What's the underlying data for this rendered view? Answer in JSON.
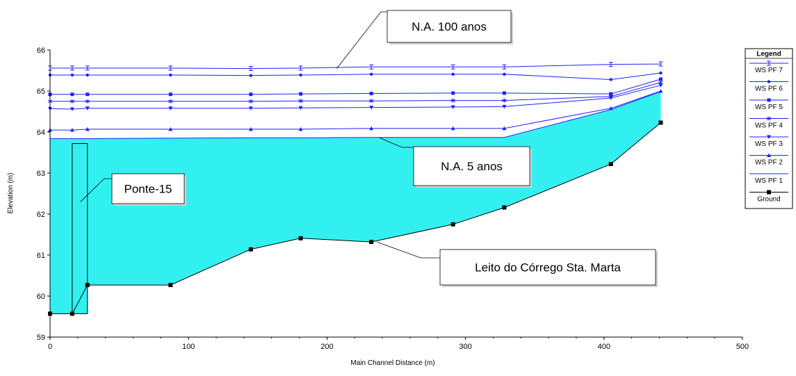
{
  "chart_data": {
    "type": "line",
    "title": "",
    "xlabel": "Main Channel Distance (m)",
    "ylabel": "Elevation (m)",
    "xlim": [
      0,
      500
    ],
    "ylim": [
      59,
      66
    ],
    "xticks": [
      "0",
      "100",
      "200",
      "300",
      "400",
      "500"
    ],
    "yticks": [
      "59",
      "60",
      "61",
      "62",
      "63",
      "64",
      "65",
      "66"
    ],
    "grid": false,
    "legend_position": "right",
    "legend_title": "Legend",
    "water_fill_color": "#33f0f0",
    "line_color": "#2020ff",
    "ground_color": "#000000",
    "series": [
      {
        "name": "WS  PF 7",
        "marker": "hourglass",
        "x": [
          0,
          16,
          27,
          87,
          145,
          181,
          232,
          291,
          328,
          405,
          441
        ],
        "y": [
          65.56,
          65.56,
          65.56,
          65.56,
          65.55,
          65.56,
          65.59,
          65.59,
          65.59,
          65.65,
          65.66
        ]
      },
      {
        "name": "WS  PF 6",
        "marker": "dot",
        "x": [
          0,
          16,
          27,
          87,
          145,
          181,
          232,
          291,
          328,
          405,
          441
        ],
        "y": [
          65.39,
          65.39,
          65.39,
          65.39,
          65.38,
          65.39,
          65.41,
          65.41,
          65.41,
          65.28,
          65.44
        ]
      },
      {
        "name": "WS  PF 5",
        "marker": "square",
        "x": [
          0,
          16,
          27,
          87,
          145,
          181,
          232,
          291,
          328,
          405,
          441
        ],
        "y": [
          64.92,
          64.92,
          64.92,
          64.92,
          64.92,
          64.93,
          64.94,
          64.95,
          64.95,
          64.93,
          65.29
        ]
      },
      {
        "name": "WS  PF 4",
        "marker": "star",
        "x": [
          0,
          16,
          27,
          87,
          145,
          181,
          232,
          291,
          328,
          405,
          441
        ],
        "y": [
          64.75,
          64.75,
          64.75,
          64.75,
          64.75,
          64.76,
          64.76,
          64.77,
          64.77,
          64.87,
          65.21
        ]
      },
      {
        "name": "WS  PF 3",
        "marker": "triangle-down",
        "x": [
          0,
          16,
          27,
          87,
          145,
          181,
          232,
          291,
          328,
          405,
          441
        ],
        "y": [
          64.57,
          64.56,
          64.58,
          64.58,
          64.58,
          64.59,
          64.6,
          64.61,
          64.62,
          64.83,
          65.14
        ]
      },
      {
        "name": "WS  PF 2",
        "marker": "triangle-up",
        "x": [
          0,
          16,
          27,
          87,
          145,
          181,
          232,
          291,
          328,
          405,
          441
        ],
        "y": [
          64.05,
          64.05,
          64.07,
          64.07,
          64.07,
          64.07,
          64.09,
          64.09,
          64.09,
          64.58,
          65.0
        ]
      },
      {
        "name": "WS  PF 1",
        "marker": "none",
        "x": [
          0,
          16,
          27,
          87,
          145,
          181,
          232,
          291,
          328,
          405,
          441
        ],
        "y": [
          63.84,
          63.84,
          63.84,
          63.85,
          63.86,
          63.86,
          63.87,
          63.87,
          63.87,
          64.55,
          64.99
        ]
      },
      {
        "name": "Ground",
        "marker": "square-black",
        "x": [
          0,
          16,
          27,
          87,
          145,
          181,
          232,
          291,
          328,
          405,
          441
        ],
        "y": [
          59.57,
          59.57,
          60.27,
          60.27,
          61.14,
          61.41,
          61.32,
          61.75,
          62.16,
          63.22,
          64.23
        ]
      }
    ],
    "bridge": {
      "x_left": 16,
      "x_right": 27,
      "y_top": 63.72
    },
    "annotations": [
      {
        "text": "N.A. 100 anos",
        "target_x": 207,
        "target_y": 65.55
      },
      {
        "text": "N.A. 5 anos",
        "target_x": 238,
        "target_y": 63.86
      },
      {
        "text": "Ponte-15",
        "target_x": 22,
        "target_y": 62.3
      },
      {
        "text": "Leito do Córrego Sta. Marta",
        "target_x": 236,
        "target_y": 61.32
      }
    ]
  }
}
